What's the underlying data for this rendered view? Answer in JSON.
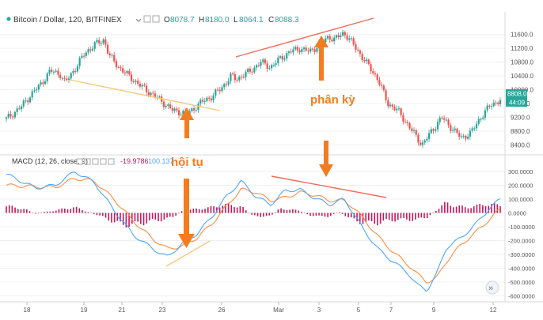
{
  "chart_data": [
    {
      "type": "candlestick",
      "title": "Bitcoin / Dollar, 120, BITFINEX",
      "ohlc": {
        "O": "8078.7",
        "H": "8180.0",
        "L": "8064.1",
        "C": "8088.3"
      },
      "ylim": [
        8200,
        11800
      ],
      "y_ticks": [
        "11600.0",
        "11200.0",
        "10800.0",
        "10400.0",
        "10000.0",
        "9600.0",
        "9200.0",
        "8800.0",
        "8400.0"
      ],
      "last_price": "8808.0",
      "countdown": "44:09",
      "x_ticks": [
        "18",
        "19",
        "21",
        "23",
        "26",
        "Mar",
        "3",
        "5",
        "7",
        "9",
        "12"
      ],
      "colors": {
        "up": "#26a69a",
        "down": "#ef5350",
        "support_line": "#f5c97a",
        "resistance_line": "#ef6c5a",
        "annotation": "#f47c20"
      },
      "annotation": "phân kỳ",
      "close_path": [
        [
          0,
          9150
        ],
        [
          3,
          9500
        ],
        [
          5,
          9850
        ],
        [
          7,
          10150
        ],
        [
          9,
          10550
        ],
        [
          11,
          10450
        ],
        [
          12,
          10200
        ],
        [
          14,
          10600
        ],
        [
          16,
          11050
        ],
        [
          18,
          11300
        ],
        [
          20,
          11450
        ],
        [
          21,
          11000
        ],
        [
          23,
          10650
        ],
        [
          25,
          10400
        ],
        [
          28,
          10050
        ],
        [
          31,
          9750
        ],
        [
          34,
          9400
        ],
        [
          37,
          9300
        ],
        [
          40,
          9650
        ],
        [
          42,
          9800
        ],
        [
          44,
          10050
        ],
        [
          46,
          10400
        ],
        [
          47,
          10300
        ],
        [
          50,
          10550
        ],
        [
          52,
          10800
        ],
        [
          54,
          10650
        ],
        [
          56,
          10900
        ],
        [
          58,
          11100
        ],
        [
          60,
          11200
        ],
        [
          62,
          11100
        ],
        [
          64,
          11300
        ],
        [
          66,
          11550
        ],
        [
          67,
          11450
        ],
        [
          69,
          11650
        ],
        [
          70,
          11500
        ],
        [
          72,
          11100
        ],
        [
          74,
          10700
        ],
        [
          76,
          10300
        ],
        [
          78,
          9600
        ],
        [
          80,
          9400
        ],
        [
          82,
          9000
        ],
        [
          84,
          8600
        ],
        [
          85,
          8400
        ],
        [
          87,
          8800
        ],
        [
          89,
          9200
        ],
        [
          91,
          8900
        ],
        [
          93,
          8600
        ],
        [
          95,
          8750
        ],
        [
          97,
          9200
        ],
        [
          99,
          9550
        ],
        [
          101,
          9700
        ]
      ]
    },
    {
      "type": "line",
      "title": "MACD (12, 26, close, 9)",
      "values_text": [
        "-19.9786",
        "100.137"
      ],
      "ylim": [
        -620,
        340
      ],
      "y_ticks": [
        "300.0000",
        "200.0000",
        "100.0000",
        "0.0000",
        "-100.0000",
        "-200.0000",
        "-300.0000",
        "-400.0000",
        "-500.0000",
        "-600.0000"
      ],
      "colors": {
        "macd": "#4da6ff",
        "signal": "#ff8c42",
        "histogram": "#c2185b",
        "divergence_line": "#f5c97a",
        "annotation": "#f47c20"
      },
      "annotation": "hội tụ",
      "macd_path": [
        [
          0,
          280
        ],
        [
          6,
          180
        ],
        [
          10,
          200
        ],
        [
          14,
          300
        ],
        [
          18,
          220
        ],
        [
          22,
          20
        ],
        [
          26,
          -160
        ],
        [
          30,
          -260
        ],
        [
          33,
          -320
        ],
        [
          36,
          -220
        ],
        [
          39,
          -150
        ],
        [
          42,
          -30
        ],
        [
          45,
          120
        ],
        [
          48,
          230
        ],
        [
          51,
          120
        ],
        [
          54,
          60
        ],
        [
          57,
          160
        ],
        [
          60,
          170
        ],
        [
          63,
          110
        ],
        [
          66,
          60
        ],
        [
          69,
          100
        ],
        [
          71,
          0
        ],
        [
          73,
          -120
        ],
        [
          76,
          -260
        ],
        [
          79,
          -350
        ],
        [
          82,
          -430
        ],
        [
          84,
          -520
        ],
        [
          86,
          -560
        ],
        [
          88,
          -440
        ],
        [
          90,
          -250
        ],
        [
          93,
          -180
        ],
        [
          96,
          -80
        ],
        [
          99,
          40
        ],
        [
          101,
          100
        ]
      ],
      "signal_path": [
        [
          0,
          200
        ],
        [
          6,
          190
        ],
        [
          10,
          185
        ],
        [
          14,
          250
        ],
        [
          18,
          230
        ],
        [
          22,
          100
        ],
        [
          26,
          -60
        ],
        [
          30,
          -190
        ],
        [
          33,
          -260
        ],
        [
          36,
          -240
        ],
        [
          39,
          -180
        ],
        [
          42,
          -80
        ],
        [
          45,
          50
        ],
        [
          48,
          170
        ],
        [
          51,
          150
        ],
        [
          54,
          90
        ],
        [
          57,
          110
        ],
        [
          60,
          150
        ],
        [
          63,
          130
        ],
        [
          66,
          90
        ],
        [
          69,
          90
        ],
        [
          71,
          40
        ],
        [
          73,
          -40
        ],
        [
          76,
          -170
        ],
        [
          79,
          -280
        ],
        [
          82,
          -370
        ],
        [
          84,
          -440
        ],
        [
          86,
          -500
        ],
        [
          88,
          -470
        ],
        [
          90,
          -350
        ],
        [
          93,
          -230
        ],
        [
          96,
          -140
        ],
        [
          99,
          -40
        ],
        [
          101,
          30
        ]
      ],
      "histogram": [
        [
          0,
          60
        ],
        [
          2,
          50
        ],
        [
          4,
          30
        ],
        [
          6,
          -10
        ],
        [
          8,
          10
        ],
        [
          10,
          20
        ],
        [
          12,
          40
        ],
        [
          14,
          50
        ],
        [
          16,
          20
        ],
        [
          18,
          -10
        ],
        [
          20,
          -40
        ],
        [
          22,
          -80
        ],
        [
          24,
          -110
        ],
        [
          26,
          -100
        ],
        [
          28,
          -90
        ],
        [
          30,
          -70
        ],
        [
          32,
          -60
        ],
        [
          34,
          -40
        ],
        [
          36,
          20
        ],
        [
          38,
          30
        ],
        [
          40,
          40
        ],
        [
          42,
          50
        ],
        [
          44,
          70
        ],
        [
          46,
          70
        ],
        [
          48,
          60
        ],
        [
          50,
          -20
        ],
        [
          52,
          -30
        ],
        [
          54,
          -30
        ],
        [
          56,
          40
        ],
        [
          58,
          30
        ],
        [
          60,
          20
        ],
        [
          62,
          -20
        ],
        [
          64,
          -30
        ],
        [
          66,
          -30
        ],
        [
          68,
          10
        ],
        [
          70,
          -40
        ],
        [
          72,
          -80
        ],
        [
          74,
          -90
        ],
        [
          76,
          -90
        ],
        [
          78,
          -70
        ],
        [
          80,
          -60
        ],
        [
          82,
          -60
        ],
        [
          84,
          -60
        ],
        [
          86,
          -40
        ],
        [
          88,
          30
        ],
        [
          90,
          90
        ],
        [
          92,
          60
        ],
        [
          94,
          50
        ],
        [
          96,
          60
        ],
        [
          98,
          80
        ],
        [
          100,
          70
        ]
      ]
    }
  ],
  "toolbar": {
    "scroll_button": "»"
  }
}
